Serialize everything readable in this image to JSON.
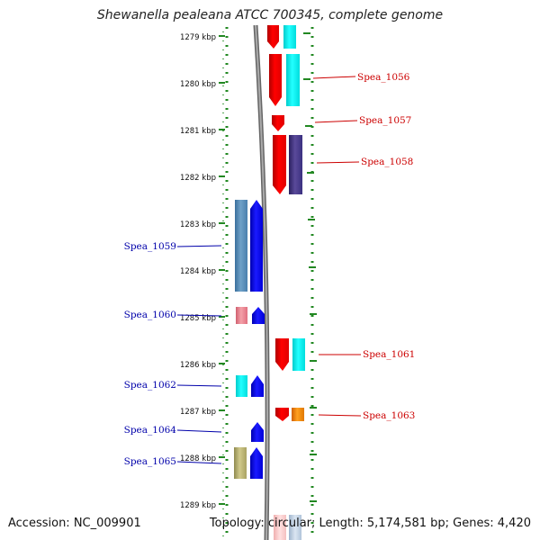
{
  "title": "Shewanella pealeana ATCC 700345, complete genome",
  "footer": {
    "accession": "Accession: NC_009901",
    "summary": "Topology: circular; Length: 5,174,581 bp; Genes: 4,420"
  },
  "scale": {
    "unit": "kbp",
    "ticks": [
      "1279 kbp",
      "1280 kbp",
      "1281 kbp",
      "1282 kbp",
      "1283 kbp",
      "1284 kbp",
      "1285 kbp",
      "1286 kbp",
      "1287 kbp",
      "1288 kbp",
      "1289 kbp"
    ]
  },
  "colors": {
    "forward_label": "#cc0000",
    "reverse_label": "#0000aa",
    "backbone": "#888888",
    "tick": "#228822"
  },
  "genes": [
    {
      "name": "Spea_1056",
      "strand": "forward"
    },
    {
      "name": "Spea_1057",
      "strand": "forward"
    },
    {
      "name": "Spea_1058",
      "strand": "forward"
    },
    {
      "name": "Spea_1059",
      "strand": "reverse"
    },
    {
      "name": "Spea_1060",
      "strand": "reverse"
    },
    {
      "name": "Spea_1061",
      "strand": "forward"
    },
    {
      "name": "Spea_1062",
      "strand": "reverse"
    },
    {
      "name": "Spea_1063",
      "strand": "forward"
    },
    {
      "name": "Spea_1064",
      "strand": "reverse"
    },
    {
      "name": "Spea_1065",
      "strand": "reverse"
    }
  ]
}
